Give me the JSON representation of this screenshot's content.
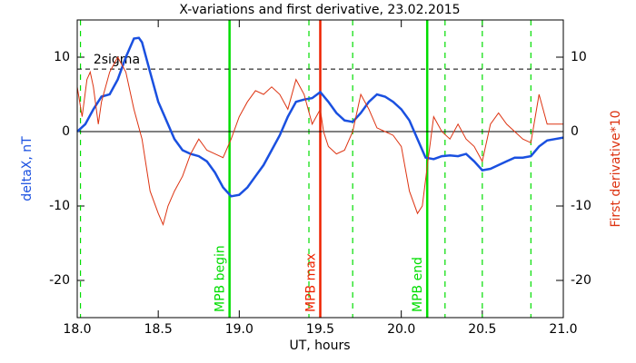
{
  "chart_data": {
    "type": "line",
    "title": "X-variations and first derivative, 23.02.2015",
    "xlabel": "UT, hours",
    "ylabel": "deltaX, nT",
    "y2label": "First derivative*10",
    "xlim": [
      18,
      21
    ],
    "xticks": [
      {
        "value": 18,
        "label": "18.0"
      },
      {
        "value": 18.5,
        "label": "18.5"
      },
      {
        "value": 19,
        "label": "19.0"
      },
      {
        "value": 19.5,
        "label": "19.5"
      },
      {
        "value": 20,
        "label": "20.0"
      },
      {
        "value": 20.5,
        "label": "20.5"
      },
      {
        "value": 21,
        "label": "21.0"
      }
    ],
    "ylim": [
      -25,
      15
    ],
    "yticks": [
      -20,
      -10,
      0,
      10
    ],
    "y2lim": [
      -25,
      15
    ],
    "y2ticks": [
      -20,
      -10,
      0,
      10
    ],
    "hlines": [
      {
        "y": 8.4,
        "label": "2sigma",
        "color": "#000000",
        "style": "dashed"
      },
      {
        "y": 0,
        "color": "#000000",
        "style": "solid"
      }
    ],
    "vlines": [
      {
        "x": 18.02,
        "color": "#00dd00",
        "style": "dashed"
      },
      {
        "x": 18.94,
        "label": "MPB begin",
        "color": "#00dd00",
        "style": "solid"
      },
      {
        "x": 19.43,
        "color": "#00dd00",
        "style": "dashed"
      },
      {
        "x": 19.5,
        "label": "MPB max",
        "color": "#ee2200",
        "style": "solid"
      },
      {
        "x": 19.7,
        "color": "#00dd00",
        "style": "dashed"
      },
      {
        "x": 20.16,
        "label": "MPB end",
        "color": "#00dd00",
        "style": "solid"
      },
      {
        "x": 20.27,
        "color": "#00dd00",
        "style": "dashed"
      },
      {
        "x": 20.5,
        "color": "#00dd00",
        "style": "dashed"
      },
      {
        "x": 20.8,
        "color": "#00dd00",
        "style": "dashed"
      }
    ],
    "series": [
      {
        "name": "deltaX",
        "color": "#1a50e0",
        "axis": "y",
        "x": [
          18.0,
          18.05,
          18.1,
          18.15,
          18.2,
          18.25,
          18.3,
          18.35,
          18.38,
          18.4,
          18.45,
          18.5,
          18.55,
          18.6,
          18.65,
          18.7,
          18.75,
          18.8,
          18.85,
          18.9,
          18.95,
          19.0,
          19.05,
          19.1,
          19.15,
          19.2,
          19.25,
          19.3,
          19.35,
          19.4,
          19.45,
          19.5,
          19.55,
          19.6,
          19.65,
          19.7,
          19.75,
          19.8,
          19.85,
          19.9,
          19.95,
          20.0,
          20.05,
          20.1,
          20.15,
          20.2,
          20.25,
          20.3,
          20.35,
          20.4,
          20.45,
          20.5,
          20.55,
          20.6,
          20.65,
          20.7,
          20.75,
          20.8,
          20.85,
          20.9,
          20.95,
          21.0
        ],
        "values": [
          0,
          1,
          3,
          4.7,
          5,
          7,
          10,
          12.5,
          12.6,
          12,
          8,
          4,
          1.5,
          -1,
          -2.5,
          -3,
          -3.3,
          -4,
          -5.5,
          -7.5,
          -8.7,
          -8.5,
          -7.5,
          -6,
          -4.5,
          -2.5,
          -0.5,
          2,
          4,
          4.3,
          4.5,
          5.3,
          4,
          2.5,
          1.5,
          1.3,
          2.5,
          4,
          5,
          4.7,
          4,
          3,
          1.5,
          -1,
          -3.5,
          -3.7,
          -3.3,
          -3.2,
          -3.3,
          -3,
          -4,
          -5.2,
          -5,
          -4.5,
          -4,
          -3.5,
          -3.5,
          -3.3,
          -2,
          -1.2,
          -1,
          -0.8
        ]
      },
      {
        "name": "First derivative*10",
        "color": "#dd3311",
        "axis": "y2",
        "x": [
          18.0,
          18.03,
          18.06,
          18.08,
          18.1,
          18.13,
          18.15,
          18.2,
          18.25,
          18.3,
          18.35,
          18.4,
          18.45,
          18.5,
          18.53,
          18.56,
          18.6,
          18.65,
          18.7,
          18.75,
          18.8,
          18.85,
          18.9,
          18.95,
          19.0,
          19.05,
          19.1,
          19.15,
          19.2,
          19.25,
          19.3,
          19.35,
          19.4,
          19.45,
          19.5,
          19.52,
          19.55,
          19.6,
          19.65,
          19.7,
          19.75,
          19.8,
          19.85,
          19.9,
          19.95,
          20.0,
          20.05,
          20.1,
          20.13,
          20.17,
          20.2,
          20.25,
          20.3,
          20.35,
          20.4,
          20.45,
          20.5,
          20.55,
          20.6,
          20.65,
          20.7,
          20.75,
          20.8,
          20.85,
          20.9,
          20.95,
          21.0
        ],
        "values": [
          6,
          2,
          7,
          8,
          6,
          1,
          4,
          8,
          10,
          8,
          3,
          -1,
          -8,
          -11,
          -12.5,
          -10,
          -8,
          -6,
          -3,
          -1,
          -2.5,
          -3,
          -3.5,
          -1,
          2,
          4,
          5.5,
          5,
          6,
          5,
          3,
          7,
          5,
          1,
          3,
          0,
          -2,
          -3,
          -2.5,
          0,
          5,
          3,
          0.5,
          0,
          -0.5,
          -2,
          -8,
          -11,
          -10,
          -3,
          2,
          0,
          -1,
          1,
          -1,
          -2,
          -4,
          1,
          2.5,
          1,
          0,
          -1,
          -1.5,
          5,
          1,
          1,
          1
        ]
      }
    ]
  }
}
